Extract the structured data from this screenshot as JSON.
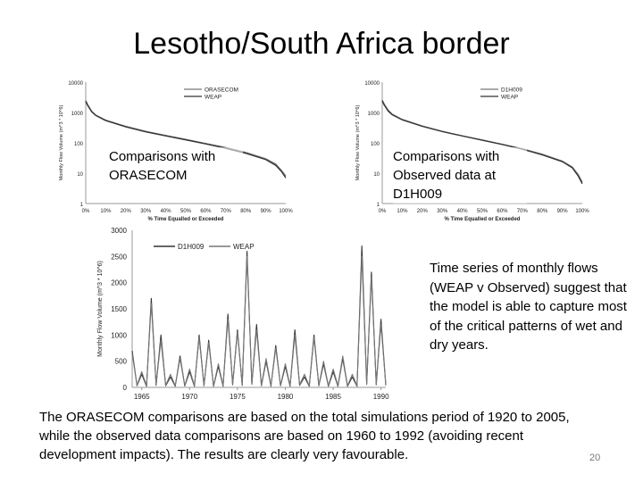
{
  "slide": {
    "title": "Lesotho/South Africa border",
    "caption_orasecom": "Comparisons with ORASECOM",
    "caption_observed": "Comparisons with Observed data at D1H009",
    "caption_timeseries": "Time series of monthly flows (WEAP v Observed) suggest that the model is able to capture most of the critical patterns of wet and dry years.",
    "footnote": "The ORASECOM comparisons are based on the total simulations period of 1920 to 2005, while the observed data comparisons are based on 1960 to 1992 (avoiding recent development impacts). The results are clearly very favourable.",
    "page_number": "20"
  },
  "colors": {
    "dark_series": "#333333",
    "light_series": "#777777",
    "axis": "#999999"
  },
  "chart_data": [
    {
      "type": "line",
      "scale": "log",
      "ylabel": "Monthly Flow Volume (m^3 * 10^6)",
      "xlabel": "% Time Equalled or Exceeded",
      "x_ticks": [
        "0%",
        "10%",
        "20%",
        "30%",
        "40%",
        "50%",
        "60%",
        "70%",
        "80%",
        "90%",
        "100%"
      ],
      "y_ticks": [
        "10000",
        "1000",
        "100",
        "10",
        "1"
      ],
      "ylim": [
        1,
        10000
      ],
      "x": [
        0,
        1,
        3,
        5,
        10,
        20,
        30,
        40,
        50,
        60,
        70,
        80,
        90,
        95,
        98,
        100
      ],
      "series": [
        {
          "name": "ORASECOM",
          "values": [
            2500,
            1800,
            1100,
            820,
            560,
            350,
            240,
            175,
            130,
            95,
            70,
            48,
            30,
            20,
            12,
            8
          ]
        },
        {
          "name": "WEAP",
          "values": [
            2300,
            1700,
            1050,
            800,
            540,
            335,
            230,
            168,
            125,
            92,
            66,
            45,
            28,
            18,
            11,
            7
          ]
        }
      ],
      "legend": "top-right"
    },
    {
      "type": "line",
      "scale": "log",
      "ylabel": "Monthly Flow Volume (m^3 * 10^6)",
      "xlabel": "% Time Equalled or Exceeded",
      "x_ticks": [
        "0%",
        "10%",
        "20%",
        "30%",
        "40%",
        "50%",
        "60%",
        "70%",
        "80%",
        "90%",
        "100%"
      ],
      "y_ticks": [
        "10000",
        "1000",
        "100",
        "10",
        "1"
      ],
      "ylim": [
        1,
        10000
      ],
      "x": [
        0,
        1,
        3,
        5,
        10,
        20,
        30,
        40,
        50,
        60,
        70,
        80,
        90,
        95,
        98,
        100
      ],
      "series": [
        {
          "name": "D1H009",
          "values": [
            2600,
            1900,
            1200,
            880,
            590,
            360,
            240,
            170,
            125,
            90,
            64,
            42,
            25,
            16,
            9,
            5
          ]
        },
        {
          "name": "WEAP",
          "values": [
            2400,
            1750,
            1100,
            840,
            570,
            350,
            235,
            168,
            122,
            88,
            62,
            40,
            24,
            15,
            8,
            4.5
          ]
        }
      ],
      "legend": "top-right"
    },
    {
      "type": "line",
      "ylabel": "Monthly Flow Volume (m^3 * 10^6)",
      "x_ticks": [
        "1965",
        "1970",
        "1975",
        "1980",
        "1985",
        "1990"
      ],
      "y_ticks": [
        "0",
        "500",
        "1000",
        "1500",
        "2000",
        "2500",
        "3000"
      ],
      "ylim": [
        0,
        3000
      ],
      "xlim": [
        1964,
        1990.5
      ],
      "x": [
        1964,
        1964.5,
        1965,
        1965.5,
        1966,
        1966.5,
        1967,
        1967.5,
        1968,
        1968.5,
        1969,
        1969.5,
        1970,
        1970.5,
        1971,
        1971.5,
        1972,
        1972.5,
        1973,
        1973.5,
        1974,
        1974.5,
        1975,
        1975.5,
        1976,
        1976.5,
        1977,
        1977.5,
        1978,
        1978.5,
        1979,
        1979.5,
        1980,
        1980.5,
        1981,
        1981.5,
        1982,
        1982.5,
        1983,
        1983.5,
        1984,
        1984.5,
        1985,
        1985.5,
        1986,
        1986.5,
        1987,
        1987.5,
        1988,
        1988.5,
        1989,
        1989.5,
        1990,
        1990.5
      ],
      "series": [
        {
          "name": "D1H009",
          "values": [
            700,
            30,
            250,
            20,
            1700,
            40,
            1000,
            30,
            200,
            20,
            600,
            25,
            300,
            20,
            1000,
            30,
            900,
            20,
            400,
            20,
            1400,
            50,
            1100,
            40,
            2600,
            60,
            1200,
            30,
            500,
            20,
            800,
            30,
            400,
            20,
            1100,
            40,
            200,
            20,
            1000,
            30,
            450,
            20,
            300,
            20,
            550,
            20,
            200,
            20,
            2700,
            60,
            2200,
            50,
            1300,
            40
          ]
        },
        {
          "name": "WEAP",
          "values": [
            650,
            40,
            300,
            30,
            1600,
            50,
            900,
            40,
            250,
            30,
            550,
            35,
            350,
            30,
            950,
            40,
            850,
            30,
            450,
            30,
            1300,
            60,
            1050,
            50,
            2500,
            70,
            1100,
            40,
            550,
            30,
            750,
            40,
            450,
            30,
            1000,
            50,
            250,
            30,
            950,
            40,
            500,
            30,
            350,
            30,
            600,
            30,
            250,
            30,
            2500,
            70,
            2100,
            60,
            1200,
            50
          ]
        }
      ],
      "legend": "top-left"
    }
  ]
}
